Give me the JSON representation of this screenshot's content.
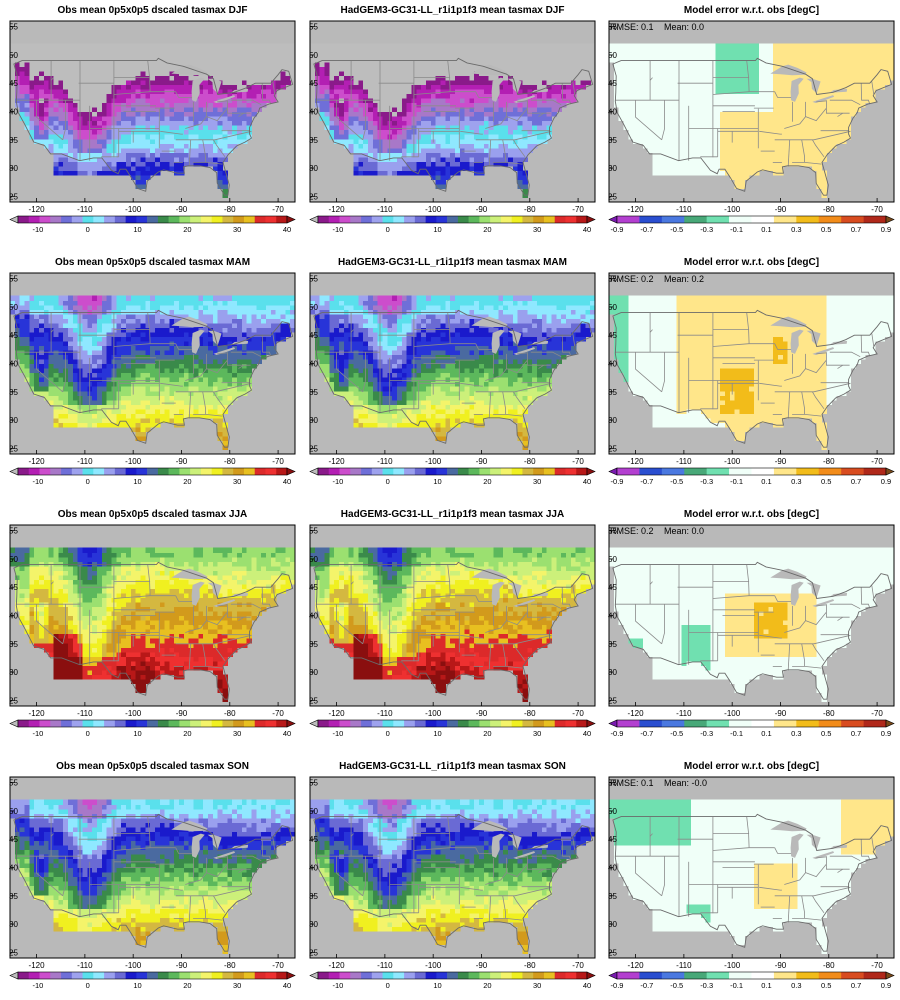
{
  "panels": [
    {
      "title": "Obs mean 0p5x0p5 dscaled tasmax DJF",
      "kind": "abs",
      "field": "obs",
      "season": "DJF"
    },
    {
      "title": "HadGEM3-GC31-LL_r1i1p1f3 mean tasmax DJF",
      "kind": "abs",
      "field": "model",
      "season": "DJF"
    },
    {
      "title": "Model error w.r.t. obs [degC]",
      "kind": "err",
      "season": "DJF",
      "rmse_text": "RMSE: 0.1",
      "mean_text": "Mean: 0.0"
    },
    {
      "title": "Obs mean 0p5x0p5 dscaled tasmax MAM",
      "kind": "abs",
      "field": "obs",
      "season": "MAM"
    },
    {
      "title": "HadGEM3-GC31-LL_r1i1p1f3 mean tasmax MAM",
      "kind": "abs",
      "field": "model",
      "season": "MAM"
    },
    {
      "title": "Model error w.r.t. obs [degC]",
      "kind": "err",
      "season": "MAM",
      "rmse_text": "RMSE: 0.2",
      "mean_text": "Mean: 0.2"
    },
    {
      "title": "Obs mean 0p5x0p5 dscaled tasmax JJA",
      "kind": "abs",
      "field": "obs",
      "season": "JJA"
    },
    {
      "title": "HadGEM3-GC31-LL_r1i1p1f3 mean tasmax JJA",
      "kind": "abs",
      "field": "model",
      "season": "JJA"
    },
    {
      "title": "Model error w.r.t. obs [degC]",
      "kind": "err",
      "season": "JJA",
      "rmse_text": "RMSE: 0.2",
      "mean_text": "Mean: 0.0"
    },
    {
      "title": "Obs mean 0p5x0p5 dscaled tasmax SON",
      "kind": "abs",
      "field": "obs",
      "season": "SON"
    },
    {
      "title": "HadGEM3-GC31-LL_r1i1p1f3 mean tasmax SON",
      "kind": "abs",
      "field": "model",
      "season": "SON"
    },
    {
      "title": "Model error w.r.t. obs [degC]",
      "kind": "err",
      "season": "SON",
      "rmse_text": "RMSE: 0.1",
      "mean_text": "Mean: -0.0"
    }
  ],
  "map_axes": {
    "lon_ticks": [
      -120,
      -110,
      -100,
      -90,
      -80,
      -70
    ],
    "lat_ticks": [
      25,
      30,
      35,
      40,
      45,
      50,
      55
    ],
    "lon_range": [
      -125.5,
      -66.5
    ],
    "lat_range": [
      24,
      56
    ]
  },
  "abs_colorbar": {
    "tick_labels": [
      "-10",
      "0",
      "10",
      "20",
      "30",
      "40"
    ],
    "colors": [
      "#bdbdbd",
      "#8a1a8a",
      "#b31fb3",
      "#cc4dcc",
      "#a878c8",
      "#6f6fd8",
      "#9ea2ee",
      "#5ae0ec",
      "#8fe8ff",
      "#9aa0ee",
      "#6a6ad4",
      "#1a1acc",
      "#2834d8",
      "#4a6aa0",
      "#3a8a4a",
      "#5cb85c",
      "#9be070",
      "#ccf07a",
      "#f4f46a",
      "#f0f020",
      "#d4b840",
      "#d29a1c",
      "#e8c020",
      "#dc2a2a",
      "#ee3030",
      "#b81818",
      "#8a0f0f"
    ]
  },
  "err_colorbar": {
    "tick_labels": [
      "-0.9",
      "-0.7",
      "-0.5",
      "-0.3",
      "-0.1",
      "0.1",
      "0.3",
      "0.5",
      "0.7",
      "0.9"
    ],
    "colors": [
      "#7a1ab0",
      "#b33fd0",
      "#2a4ed0",
      "#4a78e0",
      "#48a878",
      "#70e0b0",
      "#f0fff8",
      "#ffffff",
      "#ffe68a",
      "#f2bc1a",
      "#f28c1a",
      "#d84c20",
      "#b0281a",
      "#7a4a1a"
    ]
  },
  "colors": {
    "ocean": "#b9b9b9",
    "background": "#ffffff",
    "frame": "#000000",
    "borders": "#8a8a8a",
    "near_zero": "#f0fff8",
    "warm_bias": "#ffe68a",
    "strong_warm_bias": "#f2bc1a",
    "cool_bias": "#70e0b0"
  }
}
